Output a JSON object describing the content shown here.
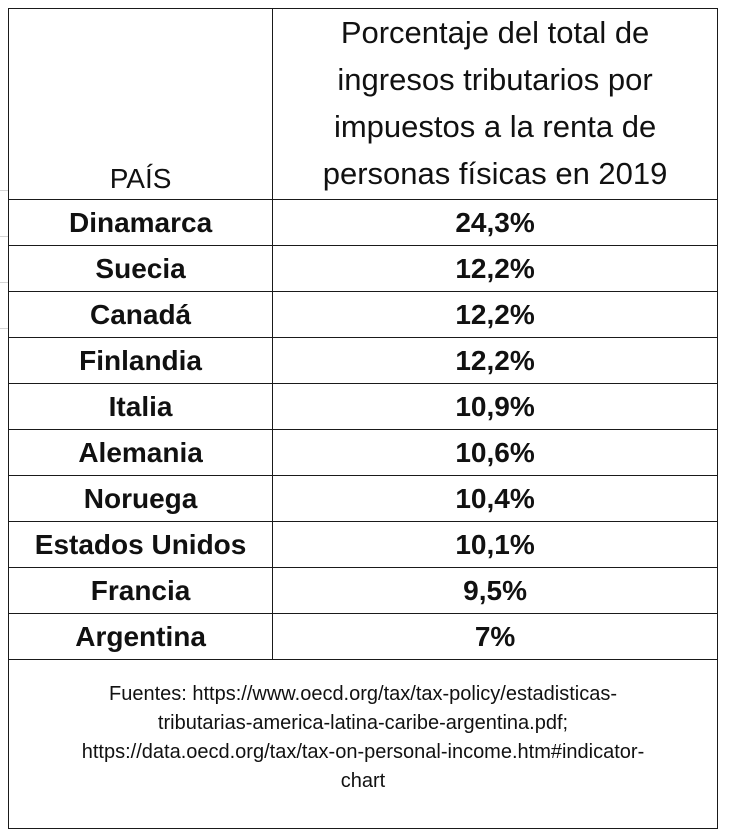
{
  "chart_data": {
    "type": "table",
    "columns": [
      "PAÍS",
      "Porcentaje del total de ingresos tributarios por impuestos a la renta de personas físicas en 2019"
    ],
    "rows": [
      {
        "country": "Dinamarca",
        "value": "24,3%"
      },
      {
        "country": "Suecia",
        "value": "12,2%"
      },
      {
        "country": "Canadá",
        "value": "12,2%"
      },
      {
        "country": "Finlandia",
        "value": "12,2%"
      },
      {
        "country": "Italia",
        "value": "10,9%"
      },
      {
        "country": "Alemania",
        "value": "10,6%"
      },
      {
        "country": "Noruega",
        "value": "10,4%"
      },
      {
        "country": "Estados Unidos",
        "value": "10,1%"
      },
      {
        "country": "Francia",
        "value": "9,5%"
      },
      {
        "country": "Argentina",
        "value": "7%"
      }
    ],
    "values": [
      24.3,
      12.2,
      12.2,
      12.2,
      10.9,
      10.6,
      10.4,
      10.1,
      9.5,
      7
    ],
    "source": "Fuentes: https://www.oecd.org/tax/tax-policy/estadisticas-tributarias-america-latina-caribe-argentina.pdf; https://data.oecd.org/tax/tax-on-personal-income.htm#indicator-chart"
  },
  "header": {
    "col1": "PAÍS",
    "col2_lines": [
      "Porcentaje del total de",
      "ingresos tributarios por",
      "impuestos a la renta de",
      "personas físicas en 2019"
    ]
  },
  "source_lines": [
    "Fuentes: https://www.oecd.org/tax/tax-policy/estadisticas-",
    "tributarias-america-latina-caribe-argentina.pdf;",
    "https://data.oecd.org/tax/tax-on-personal-income.htm#indicator-",
    "chart"
  ]
}
